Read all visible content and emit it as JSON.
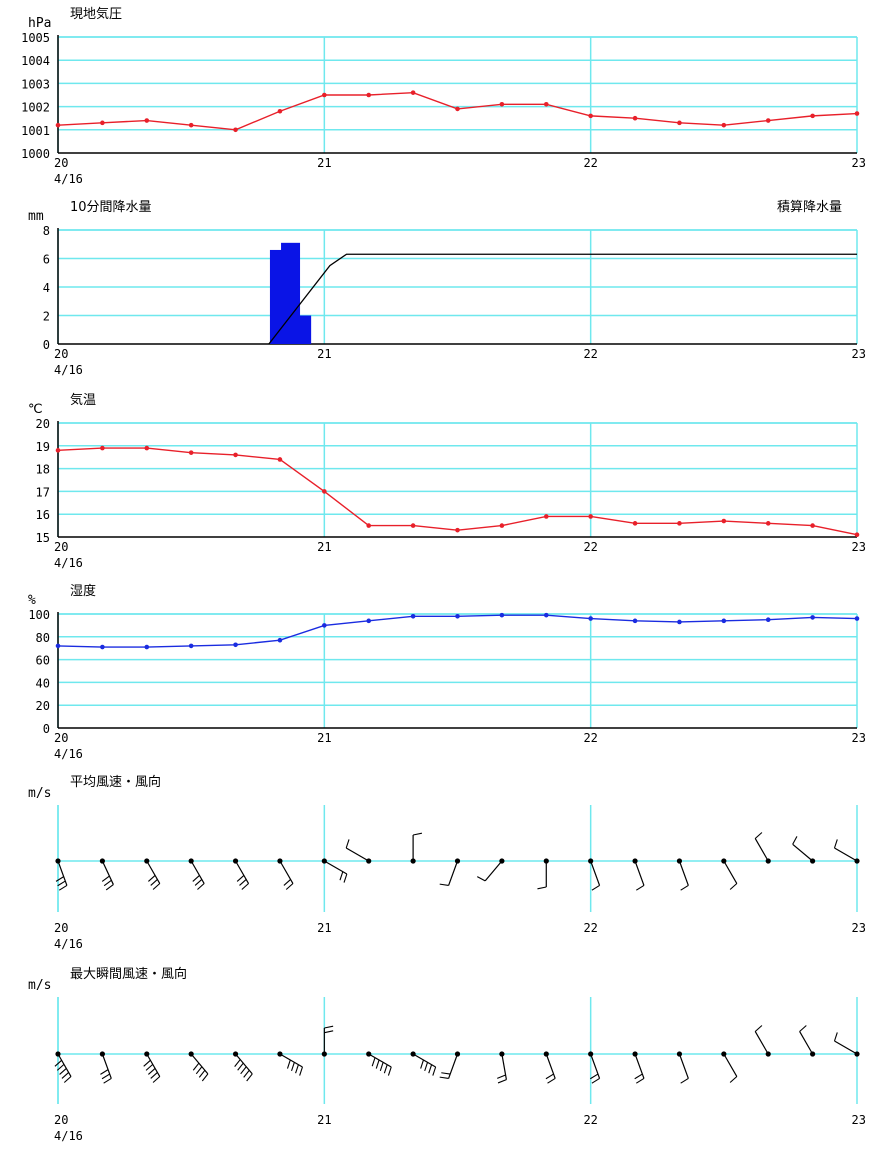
{
  "colors": {
    "grid": "#6fe8ee",
    "axis": "#000000",
    "pressure": "#e8202a",
    "temperature": "#e8202a",
    "humidity": "#1a2ce0",
    "rain_bar": "#0a14e6",
    "cumulative": "#000000",
    "wind": "#000000"
  },
  "x_axis": {
    "ticks": [
      "20",
      "21",
      "22",
      "23"
    ],
    "date_label": "4/16",
    "hours_per_point": 4,
    "range_hours": [
      0,
      72
    ]
  },
  "chart_data": [
    {
      "id": "pressure",
      "type": "line",
      "title": "現地気圧",
      "ylabel": "hPa",
      "ylim": [
        1000,
        1005
      ],
      "yticks": [
        "1000",
        "1001",
        "1002",
        "1003",
        "1004",
        "1005"
      ],
      "grid": true,
      "series": [
        {
          "values": [
            1001.2,
            1001.3,
            1001.4,
            1001.2,
            1001.0,
            1001.8,
            1002.5,
            1002.5,
            1002.6,
            1001.9,
            1002.1,
            1002.1,
            1001.6,
            1001.5,
            1001.3,
            1001.2,
            1001.4,
            1001.6,
            1001.7
          ]
        }
      ]
    },
    {
      "id": "precip",
      "type": "bar",
      "title": "10分間降水量",
      "ylabel": "mm",
      "right_title": "積算降水量",
      "ylim": [
        0,
        8
      ],
      "yticks": [
        "0",
        "2",
        "4",
        "6",
        "8"
      ],
      "grid": true,
      "bars": [
        {
          "x": 20.0,
          "value": 6.6
        },
        {
          "x": 21.0,
          "value": 7.1
        },
        {
          "x": 22.0,
          "value": 2.0
        }
      ],
      "cumulative": [
        [
          19.0,
          0
        ],
        [
          24.5,
          5.5
        ],
        [
          26.0,
          6.3
        ],
        [
          72,
          6.3
        ]
      ]
    },
    {
      "id": "temperature",
      "type": "line",
      "title": "気温",
      "ylabel": "℃",
      "ylim": [
        15,
        20
      ],
      "yticks": [
        "15",
        "16",
        "17",
        "18",
        "19",
        "20"
      ],
      "grid": true,
      "series": [
        {
          "values": [
            18.8,
            18.9,
            18.9,
            18.7,
            18.6,
            18.4,
            17.0,
            15.5,
            15.5,
            15.3,
            15.5,
            15.9,
            15.9,
            15.6,
            15.6,
            15.7,
            15.6,
            15.5,
            15.1
          ]
        }
      ]
    },
    {
      "id": "humidity",
      "type": "line",
      "title": "湿度",
      "ylabel": "%",
      "ylim": [
        0,
        100
      ],
      "yticks": [
        "0",
        "20",
        "40",
        "60",
        "80",
        "100"
      ],
      "grid": true,
      "series": [
        {
          "values": [
            72,
            71,
            71,
            72,
            73,
            77,
            90,
            94,
            98,
            98,
            99,
            99,
            96,
            94,
            93,
            94,
            95,
            97,
            96
          ]
        }
      ]
    },
    {
      "id": "wind_avg",
      "type": "wind-barbs",
      "title": "平均風速・風向",
      "ylabel": "m/s",
      "grid": true,
      "barbs": [
        [
          160,
          3
        ],
        [
          155,
          3
        ],
        [
          150,
          3
        ],
        [
          150,
          3
        ],
        [
          150,
          3
        ],
        [
          150,
          2
        ],
        [
          120,
          2
        ],
        [
          300,
          1
        ],
        [
          0,
          1
        ],
        [
          200,
          1
        ],
        [
          220,
          1
        ],
        [
          180,
          1
        ],
        [
          160,
          1
        ],
        [
          160,
          1
        ],
        [
          160,
          1
        ],
        [
          150,
          1
        ],
        [
          330,
          1
        ],
        [
          310,
          1
        ],
        [
          300,
          1
        ]
      ]
    },
    {
      "id": "wind_gust",
      "type": "wind-barbs",
      "title": "最大瞬間風速・風向",
      "ylabel": "m/s",
      "grid": true,
      "barbs": [
        [
          150,
          5
        ],
        [
          160,
          3
        ],
        [
          150,
          5
        ],
        [
          140,
          4
        ],
        [
          140,
          5
        ],
        [
          120,
          4
        ],
        [
          0,
          2
        ],
        [
          120,
          5
        ],
        [
          120,
          4
        ],
        [
          200,
          2
        ],
        [
          170,
          2
        ],
        [
          160,
          2
        ],
        [
          160,
          2
        ],
        [
          160,
          2
        ],
        [
          160,
          1
        ],
        [
          150,
          1
        ],
        [
          330,
          1
        ],
        [
          330,
          1
        ],
        [
          300,
          1
        ]
      ]
    }
  ]
}
